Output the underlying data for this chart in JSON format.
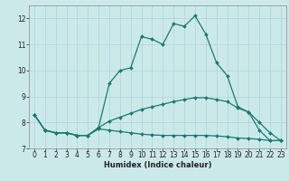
{
  "title": "",
  "xlabel": "Humidex (Indice chaleur)",
  "ylabel": "",
  "bg_color": "#cce9ea",
  "grid_color": "#aad4d5",
  "line_color": "#1a7a6e",
  "xlim": [
    -0.5,
    23.5
  ],
  "ylim": [
    7,
    12.5
  ],
  "yticks": [
    7,
    8,
    9,
    10,
    11,
    12
  ],
  "xticks": [
    0,
    1,
    2,
    3,
    4,
    5,
    6,
    7,
    8,
    9,
    10,
    11,
    12,
    13,
    14,
    15,
    16,
    17,
    18,
    19,
    20,
    21,
    22,
    23
  ],
  "lines": [
    {
      "x": [
        0,
        1,
        2,
        3,
        4,
        5,
        6,
        7,
        8,
        9,
        10,
        11,
        12,
        13,
        14,
        15,
        16,
        17,
        18,
        19,
        20,
        21,
        22,
        23
      ],
      "y": [
        8.3,
        7.7,
        7.6,
        7.6,
        7.5,
        7.5,
        7.8,
        9.5,
        10.0,
        10.1,
        11.3,
        11.2,
        11.0,
        11.8,
        11.7,
        12.1,
        11.4,
        10.3,
        9.8,
        8.6,
        8.4,
        7.7,
        7.3,
        7.3
      ]
    },
    {
      "x": [
        0,
        1,
        2,
        3,
        4,
        5,
        6,
        7,
        8,
        9,
        10,
        11,
        12,
        13,
        14,
        15,
        16,
        17,
        18,
        19,
        20,
        21,
        22,
        23
      ],
      "y": [
        8.3,
        7.7,
        7.6,
        7.6,
        7.5,
        7.5,
        7.8,
        8.05,
        8.2,
        8.35,
        8.5,
        8.6,
        8.7,
        8.8,
        8.88,
        8.95,
        8.95,
        8.88,
        8.8,
        8.55,
        8.4,
        8.0,
        7.6,
        7.3
      ]
    },
    {
      "x": [
        0,
        1,
        2,
        3,
        4,
        5,
        6,
        7,
        8,
        9,
        10,
        11,
        12,
        13,
        14,
        15,
        16,
        17,
        18,
        19,
        20,
        21,
        22,
        23
      ],
      "y": [
        8.3,
        7.7,
        7.6,
        7.6,
        7.5,
        7.5,
        7.75,
        7.7,
        7.65,
        7.6,
        7.55,
        7.52,
        7.5,
        7.5,
        7.5,
        7.5,
        7.5,
        7.48,
        7.45,
        7.4,
        7.38,
        7.35,
        7.3,
        7.3
      ]
    }
  ],
  "markersize": 2.0,
  "linewidth": 0.9,
  "xlabel_fontsize": 6,
  "tick_fontsize": 5.5
}
